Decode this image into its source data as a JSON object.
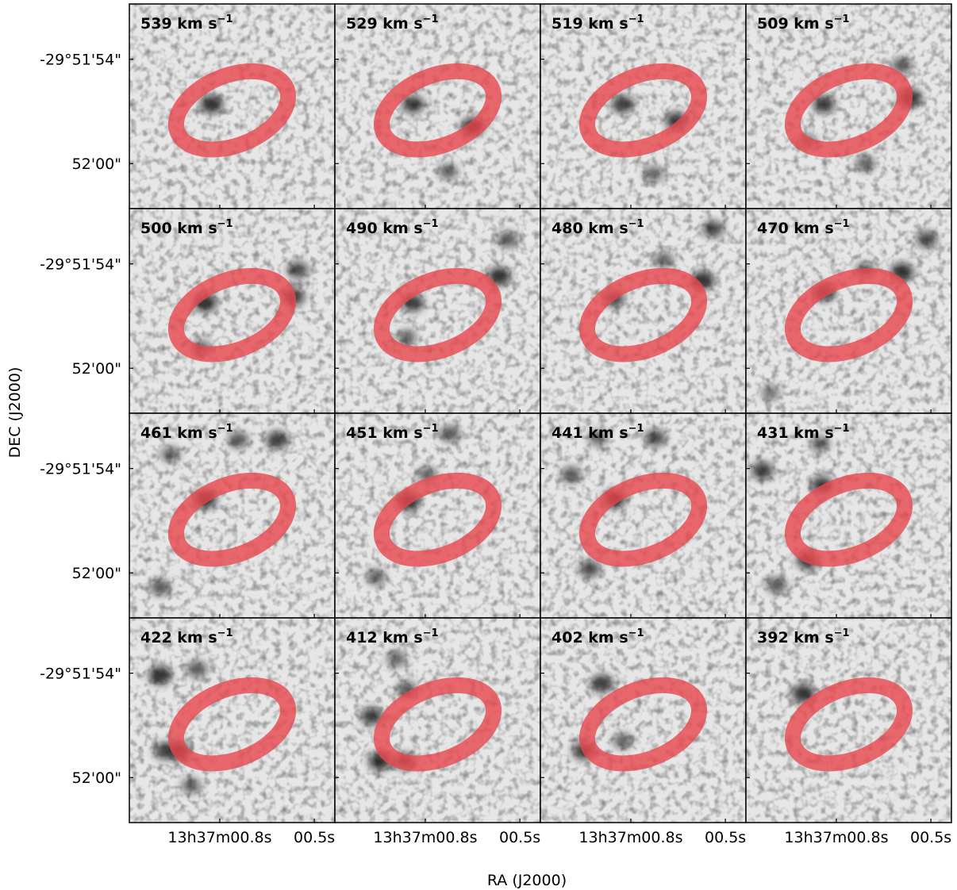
{
  "chart_data": {
    "type": "heatmap",
    "description_grid": "4x4 grid of channel-map panels, greyscale emission with red elliptical ring overlay",
    "xlabel": "RA (J2000)",
    "ylabel": "DEC (J2000)",
    "x_ticks": [
      "13h37m00.8s",
      "00.5s"
    ],
    "y_ticks": [
      "-29°51'54\"",
      "52'00\""
    ],
    "unit_label": "km s",
    "unit_exponent": "−1",
    "colormap": "greys",
    "overlay_color": "#e8474f",
    "overlay_shape": "ellipse-ring",
    "panels": [
      {
        "velocity": "539",
        "blobs": [
          [
            0.4,
            0.49,
            0.9
          ]
        ]
      },
      {
        "velocity": "529",
        "blobs": [
          [
            0.38,
            0.49,
            0.8
          ],
          [
            0.67,
            0.6,
            0.9
          ],
          [
            0.55,
            0.82,
            0.5
          ]
        ]
      },
      {
        "velocity": "519",
        "blobs": [
          [
            0.4,
            0.49,
            0.8
          ],
          [
            0.66,
            0.57,
            0.8
          ],
          [
            0.55,
            0.83,
            0.5
          ]
        ]
      },
      {
        "velocity": "509",
        "blobs": [
          [
            0.38,
            0.49,
            0.8
          ],
          [
            0.8,
            0.46,
            0.9
          ],
          [
            0.76,
            0.3,
            0.6
          ],
          [
            0.58,
            0.78,
            0.5
          ],
          [
            0.3,
            0.67,
            0.4
          ]
        ]
      },
      {
        "velocity": "500",
        "blobs": [
          [
            0.37,
            0.46,
            0.9
          ],
          [
            0.8,
            0.43,
            0.8
          ],
          [
            0.82,
            0.3,
            0.7
          ],
          [
            0.35,
            0.68,
            0.5
          ]
        ]
      },
      {
        "velocity": "490",
        "blobs": [
          [
            0.38,
            0.46,
            0.8
          ],
          [
            0.8,
            0.33,
            0.9
          ],
          [
            0.84,
            0.15,
            0.6
          ],
          [
            0.35,
            0.63,
            0.5
          ]
        ]
      },
      {
        "velocity": "480",
        "blobs": [
          [
            0.36,
            0.44,
            0.7
          ],
          [
            0.79,
            0.35,
            0.9
          ],
          [
            0.84,
            0.1,
            0.7
          ],
          [
            0.6,
            0.25,
            0.5
          ]
        ]
      },
      {
        "velocity": "470",
        "blobs": [
          [
            0.38,
            0.41,
            0.8
          ],
          [
            0.76,
            0.31,
            0.9
          ],
          [
            0.88,
            0.15,
            0.7
          ],
          [
            0.58,
            0.3,
            0.5
          ],
          [
            0.12,
            0.9,
            0.4
          ]
        ]
      },
      {
        "velocity": "461",
        "blobs": [
          [
            0.37,
            0.42,
            0.9
          ],
          [
            0.72,
            0.13,
            0.8
          ],
          [
            0.53,
            0.13,
            0.6
          ],
          [
            0.15,
            0.85,
            0.6
          ],
          [
            0.2,
            0.2,
            0.5
          ]
        ]
      },
      {
        "velocity": "451",
        "blobs": [
          [
            0.36,
            0.43,
            0.9
          ],
          [
            0.56,
            0.1,
            0.6
          ],
          [
            0.2,
            0.8,
            0.5
          ],
          [
            0.45,
            0.3,
            0.5
          ]
        ]
      },
      {
        "velocity": "441",
        "blobs": [
          [
            0.36,
            0.42,
            0.9
          ],
          [
            0.56,
            0.12,
            0.7
          ],
          [
            0.24,
            0.76,
            0.7
          ],
          [
            0.15,
            0.3,
            0.6
          ],
          [
            0.28,
            0.12,
            0.5
          ]
        ]
      },
      {
        "velocity": "431",
        "blobs": [
          [
            0.37,
            0.35,
            0.8
          ],
          [
            0.08,
            0.28,
            0.8
          ],
          [
            0.3,
            0.72,
            0.8
          ],
          [
            0.15,
            0.84,
            0.6
          ],
          [
            0.36,
            0.15,
            0.5
          ]
        ]
      },
      {
        "velocity": "422",
        "blobs": [
          [
            0.15,
            0.28,
            0.9
          ],
          [
            0.24,
            0.65,
            0.9
          ],
          [
            0.17,
            0.65,
            0.7
          ],
          [
            0.33,
            0.25,
            0.6
          ],
          [
            0.3,
            0.82,
            0.5
          ]
        ]
      },
      {
        "velocity": "412",
        "blobs": [
          [
            0.18,
            0.48,
            0.8
          ],
          [
            0.22,
            0.7,
            0.9
          ],
          [
            0.34,
            0.7,
            0.7
          ],
          [
            0.35,
            0.35,
            0.6
          ],
          [
            0.3,
            0.2,
            0.5
          ]
        ]
      },
      {
        "velocity": "402",
        "blobs": [
          [
            0.3,
            0.32,
            0.8
          ],
          [
            0.21,
            0.65,
            0.8
          ],
          [
            0.4,
            0.6,
            0.5
          ]
        ]
      },
      {
        "velocity": "392",
        "blobs": [
          [
            0.28,
            0.37,
            0.9
          ]
        ]
      }
    ]
  }
}
